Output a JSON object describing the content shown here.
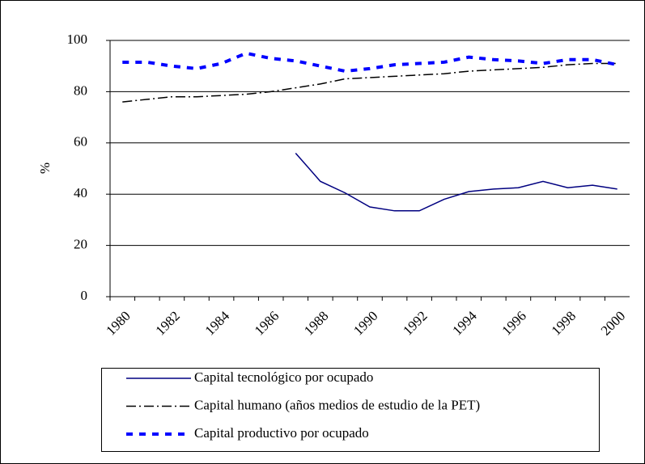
{
  "chart_data": {
    "type": "line",
    "y_label": "%",
    "categories": [
      "1980",
      null,
      "1982",
      null,
      "1984",
      null,
      "1986",
      null,
      "1988",
      null,
      "1990",
      null,
      "1992",
      null,
      "1994",
      null,
      "1996",
      null,
      "1998",
      null,
      "2000"
    ],
    "series": [
      {
        "name": "Capital tecnológico por ocupado",
        "color": "#000080",
        "style": "solid",
        "values": [
          null,
          null,
          null,
          null,
          null,
          null,
          null,
          56,
          45,
          40.5,
          35,
          33.5,
          33.5,
          38,
          41,
          42,
          42.5,
          45,
          42.5,
          43.5,
          42
        ]
      },
      {
        "name": "Capital humano (años medios de estudio de la PET)",
        "color": "#000000",
        "style": "dashdot",
        "values": [
          76,
          77,
          78,
          78,
          78.5,
          79,
          80,
          81.5,
          83,
          85,
          85.5,
          86,
          86.5,
          87,
          88,
          88.5,
          89,
          89.5,
          90.5,
          91,
          91
        ]
      },
      {
        "name": "Capital productivo por ocupado",
        "color": "#0000ff",
        "style": "dashed",
        "values": [
          91.5,
          91.5,
          90,
          89,
          91,
          95,
          93,
          92,
          90,
          88,
          89,
          90.5,
          91,
          91.5,
          93.5,
          92.5,
          92,
          91,
          92.5,
          92.5,
          90.5
        ]
      }
    ],
    "ylim": [
      0,
      100
    ],
    "yticks": [
      0,
      20,
      40,
      60,
      80,
      100
    ],
    "grid": true
  }
}
